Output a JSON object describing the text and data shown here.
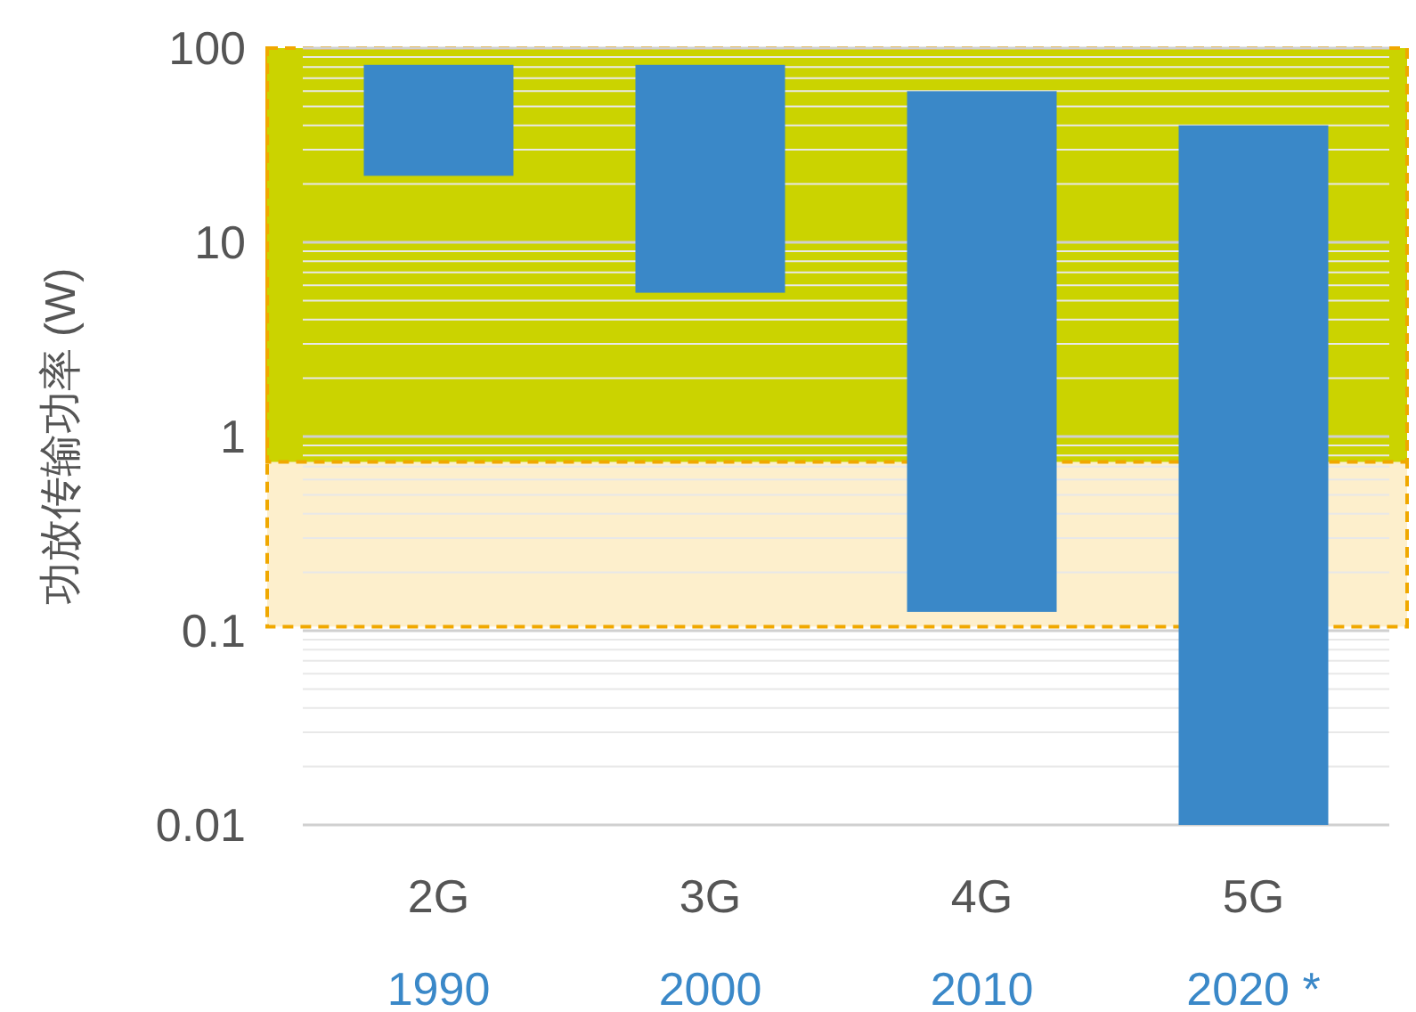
{
  "chart_data": {
    "type": "bar",
    "ylabel": "功放传输功率 (W)",
    "categories": [
      "2G\n1990",
      "3G\n2000",
      "4G\n2010",
      "5G\n2020 *"
    ],
    "base": [
      22,
      5.5,
      0.125,
      0.01
    ],
    "values": [
      60,
      76.5,
      59.875,
      39.99
    ],
    "color": "#3a88c8",
    "log": true,
    "ylim": [
      0.01,
      100
    ],
    "yticks": [
      0.01,
      0.1,
      1,
      10,
      100
    ],
    "grid": "y",
    "bands": [
      {
        "axis": "y",
        "from": 0.105,
        "to": 100,
        "color": "#fdefcc"
      },
      {
        "axis": "y",
        "from": 0.74,
        "to": 100,
        "color": "#cbd300"
      }
    ]
  }
}
